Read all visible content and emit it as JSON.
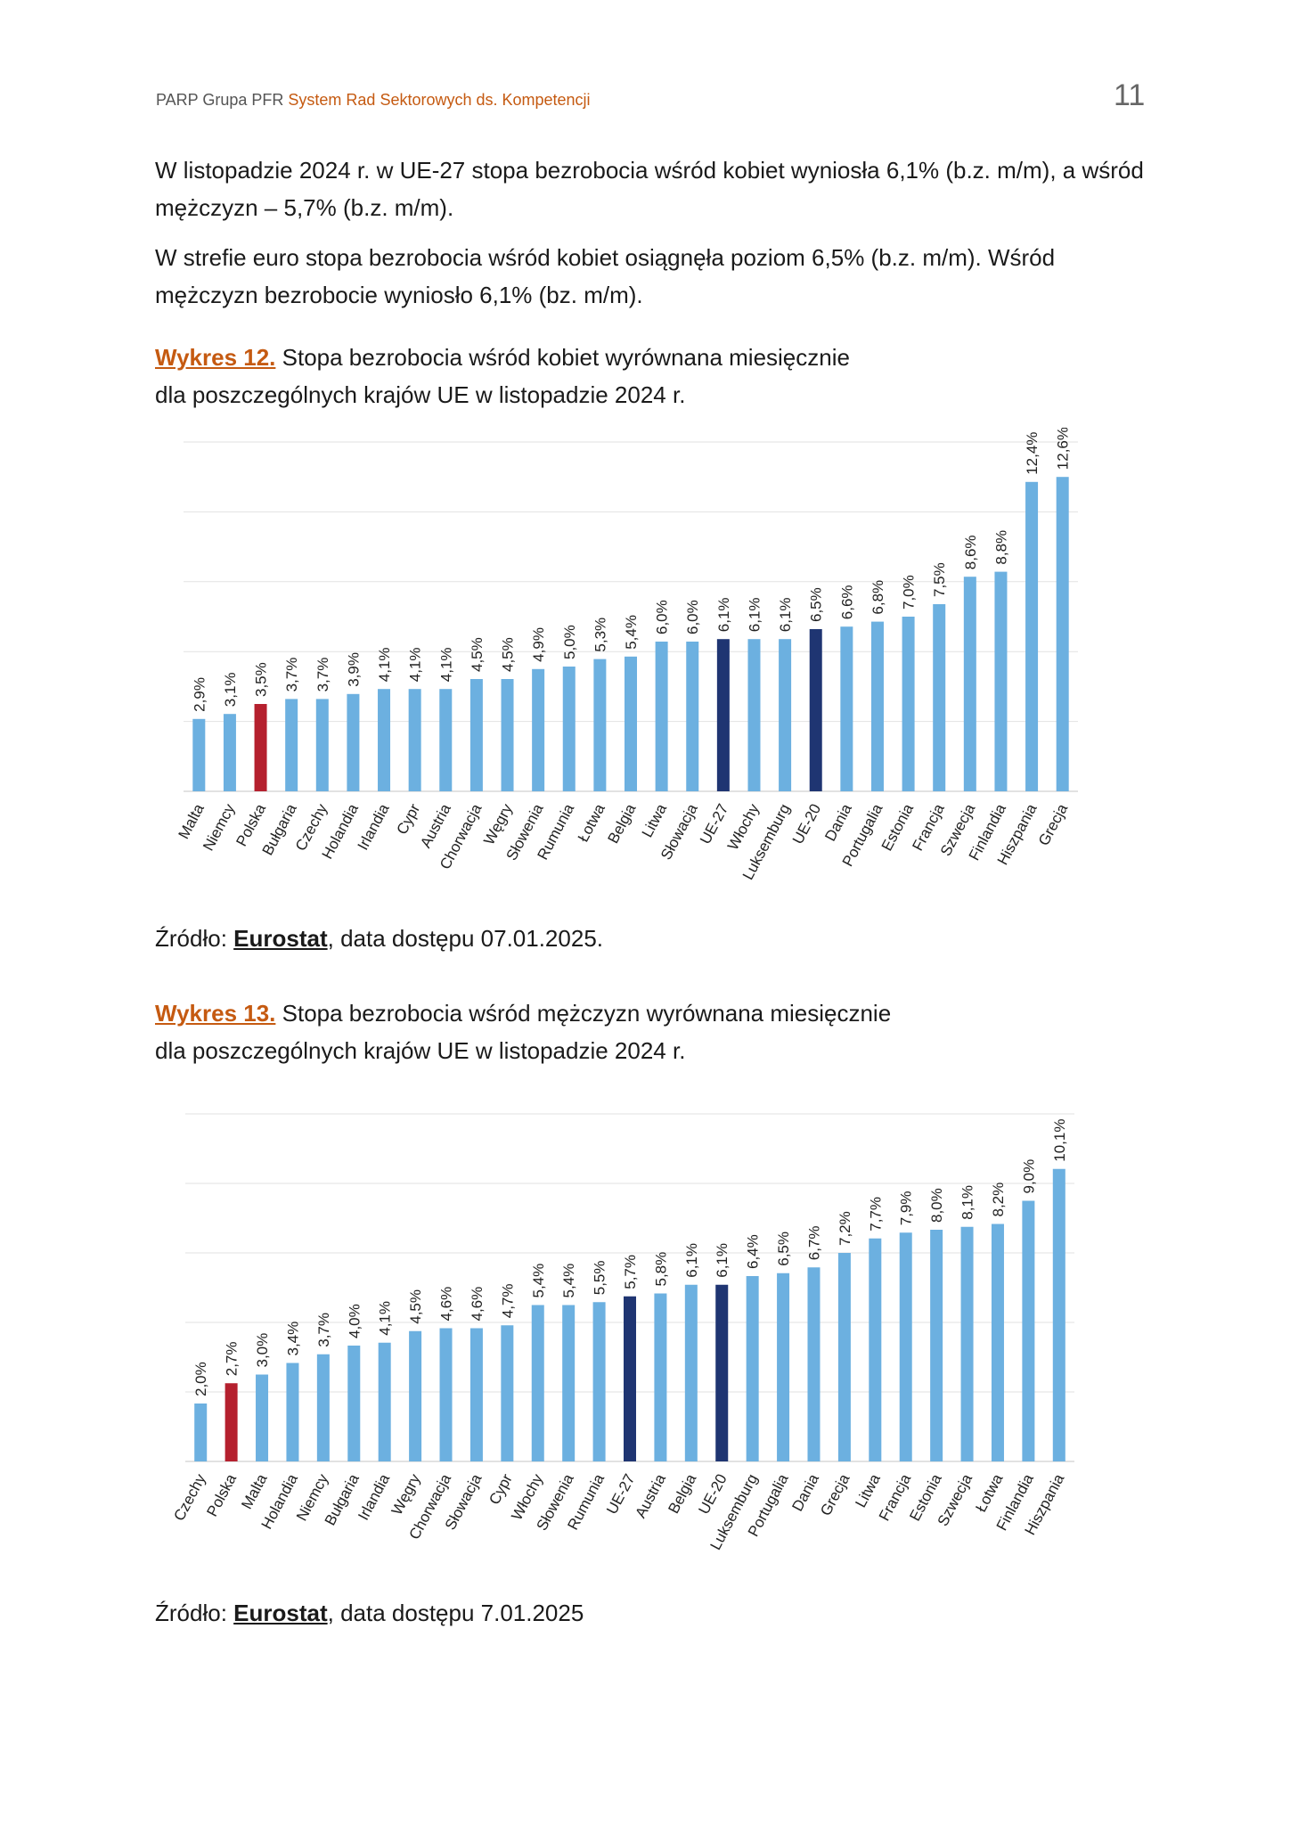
{
  "header": {
    "org": "PARP Grupa PFR",
    "series": "System Rad Sektorowych ds. Kompetencji",
    "page_number": "11"
  },
  "paragraphs": [
    "W listopadzie 2024 r. w UE-27 stopa bezrobocia wśród kobiet wyniosła 6,1% (b.z. m/m), a wśród mężczyzn – 5,7% (b.z. m/m).",
    "W strefie euro stopa bezrobocia wśród kobiet osiągnęła poziom 6,5% (b.z. m/m). Wśród mężczyzn bezrobocie wyniosło 6,1% (bz. m/m)."
  ],
  "figure12": {
    "label": "Wykres 12.",
    "title_line1": " Stopa bezrobocia wśród kobiet wyrównana miesięcznie",
    "title_line2": "dla poszczególnych krajów UE w listopadzie 2024 r.",
    "source_prefix": "Źródło: ",
    "source_name": "Eurostat",
    "source_suffix": ", data dostępu 07.01.2025."
  },
  "figure13": {
    "label": "Wykres 13.",
    "title_line1": " Stopa bezrobocia wśród mężczyzn wyrównana miesięcznie",
    "title_line2": "dla poszczególnych krajów UE w listopadzie 2024 r.",
    "source_prefix": "Źródło: ",
    "source_name": "Eurostat",
    "source_suffix": ", data dostępu 7.01.2025"
  },
  "colors": {
    "default": "#6cb0e0",
    "poland": "#b5202e",
    "eu": "#1f3572",
    "gridline": "#e2e2e2",
    "axis": "#d9d9d9"
  },
  "chart_data": [
    {
      "type": "bar",
      "title": "Stopa bezrobocia wśród kobiet wyrównana miesięcznie dla poszczególnych krajów UE w listopadzie 2024 r.",
      "categories": [
        "Malta",
        "Niemcy",
        "Polska",
        "Bułgaria",
        "Czechy",
        "Holandia",
        "Irlandia",
        "Cypr",
        "Austria",
        "Chorwacja",
        "Węgry",
        "Słowenia",
        "Rumunia",
        "Łotwa",
        "Belgia",
        "Litwa",
        "Słowacja",
        "UE-27",
        "Włochy",
        "Luksemburg",
        "UE-20",
        "Dania",
        "Portugalia",
        "Estonia",
        "Francja",
        "Szwecja",
        "Finlandia",
        "Hiszpania",
        "Grecja"
      ],
      "values": [
        2.9,
        3.1,
        3.5,
        3.7,
        3.7,
        3.9,
        4.1,
        4.1,
        4.1,
        4.5,
        4.5,
        4.9,
        5.0,
        5.3,
        5.4,
        6.0,
        6.0,
        6.1,
        6.1,
        6.1,
        6.5,
        6.6,
        6.8,
        7.0,
        7.5,
        8.6,
        8.8,
        12.4,
        12.6
      ],
      "labels": [
        "2,9%",
        "3,1%",
        "3,5%",
        "3,7%",
        "3,7%",
        "3,9%",
        "4,1%",
        "4,1%",
        "4,1%",
        "4,5%",
        "4,5%",
        "4,9%",
        "5,0%",
        "5,3%",
        "5,4%",
        "6,0%",
        "6,0%",
        "6,1%",
        "6,1%",
        "6,1%",
        "6,5%",
        "6,6%",
        "6,8%",
        "7,0%",
        "7,5%",
        "8,6%",
        "8,8%",
        "12,4%",
        "12,6%"
      ],
      "highlight": {
        "Polska": "poland",
        "UE-27": "eu",
        "UE-20": "eu"
      },
      "ylim": [
        0,
        14
      ],
      "grid": true
    },
    {
      "type": "bar",
      "title": "Stopa bezrobocia wśród mężczyzn wyrównana miesięcznie dla poszczególnych krajów UE w listopadzie 2024 r.",
      "categories": [
        "Czechy",
        "Polska",
        "Malta",
        "Holandia",
        "Niemcy",
        "Bułgaria",
        "Irlandia",
        "Węgry",
        "Chorwacja",
        "Słowacja",
        "Cypr",
        "Włochy",
        "Słowenia",
        "Rumunia",
        "UE-27",
        "Austria",
        "Belgia",
        "UE-20",
        "Luksemburg",
        "Portugalia",
        "Dania",
        "Grecja",
        "Litwa",
        "Francja",
        "Estonia",
        "Szwecja",
        "Łotwa",
        "Finlandia",
        "Hiszpania"
      ],
      "values": [
        2.0,
        2.7,
        3.0,
        3.4,
        3.7,
        4.0,
        4.1,
        4.5,
        4.6,
        4.6,
        4.7,
        5.4,
        5.4,
        5.5,
        5.7,
        5.8,
        6.1,
        6.1,
        6.4,
        6.5,
        6.7,
        7.2,
        7.7,
        7.9,
        8.0,
        8.1,
        8.2,
        9.0,
        10.1
      ],
      "labels": [
        "2,0%",
        "2,7%",
        "3,0%",
        "3,4%",
        "3,7%",
        "4,0%",
        "4,1%",
        "4,5%",
        "4,6%",
        "4,6%",
        "4,7%",
        "5,4%",
        "5,4%",
        "5,5%",
        "5,7%",
        "5,8%",
        "6,1%",
        "6,1%",
        "6,4%",
        "6,5%",
        "6,7%",
        "7,2%",
        "7,7%",
        "7,9%",
        "8,0%",
        "8,1%",
        "8,2%",
        "9,0%",
        "10,1%"
      ],
      "highlight": {
        "Polska": "poland",
        "UE-27": "eu",
        "UE-20": "eu"
      },
      "ylim": [
        0,
        12
      ],
      "grid": true
    }
  ]
}
